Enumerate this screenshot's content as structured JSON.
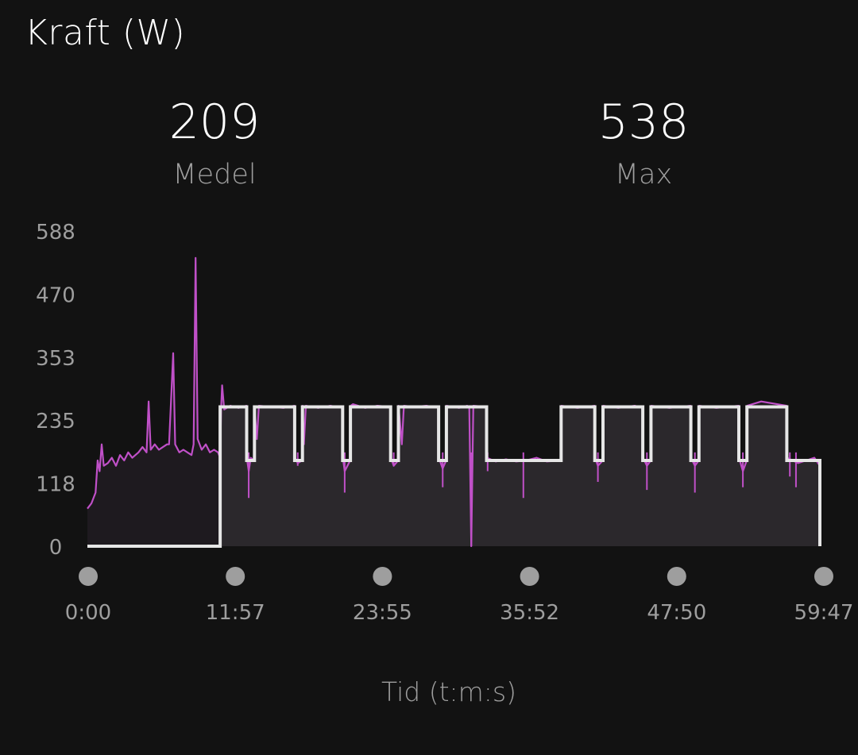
{
  "header": {
    "title": "Kraft (W)"
  },
  "stats": {
    "average": {
      "value": "209",
      "label": "Medel"
    },
    "max": {
      "value": "538",
      "label": "Max"
    }
  },
  "colors": {
    "background": "#121212",
    "power_line": "#c050c8",
    "target_line": "#e6e6e6",
    "area_fill": "#2b282c",
    "axis_label": "#9e9e9e",
    "time_marker": "#9e9e9e"
  },
  "chart_data": {
    "type": "line",
    "ylim": [
      0,
      588
    ],
    "y_ticks": [
      "588",
      "470",
      "353",
      "235",
      "118",
      "0"
    ],
    "x_ticks": [
      "0:00",
      "11:57",
      "23:55",
      "35:52",
      "47:50",
      "59:47"
    ],
    "x_duration_seconds": 3587,
    "xlabel": "Tid (t:m:s)",
    "series": [
      {
        "name": "",
        "role": "target",
        "points": [
          [
            0,
            0
          ],
          [
            650,
            0
          ],
          [
            650,
            260
          ],
          [
            780,
            260
          ],
          [
            780,
            160
          ],
          [
            818,
            160
          ],
          [
            818,
            260
          ],
          [
            1015,
            260
          ],
          [
            1015,
            160
          ],
          [
            1053,
            160
          ],
          [
            1053,
            260
          ],
          [
            1250,
            260
          ],
          [
            1250,
            160
          ],
          [
            1288,
            160
          ],
          [
            1288,
            260
          ],
          [
            1485,
            260
          ],
          [
            1485,
            160
          ],
          [
            1523,
            160
          ],
          [
            1523,
            260
          ],
          [
            1720,
            260
          ],
          [
            1720,
            160
          ],
          [
            1758,
            160
          ],
          [
            1758,
            260
          ],
          [
            1955,
            260
          ],
          [
            1955,
            160
          ],
          [
            2320,
            160
          ],
          [
            2320,
            260
          ],
          [
            2485,
            260
          ],
          [
            2485,
            160
          ],
          [
            2525,
            160
          ],
          [
            2525,
            260
          ],
          [
            2720,
            260
          ],
          [
            2720,
            160
          ],
          [
            2760,
            160
          ],
          [
            2760,
            260
          ],
          [
            2955,
            260
          ],
          [
            2955,
            160
          ],
          [
            2995,
            160
          ],
          [
            2995,
            260
          ],
          [
            3190,
            260
          ],
          [
            3190,
            160
          ],
          [
            3230,
            160
          ],
          [
            3230,
            260
          ],
          [
            3425,
            260
          ],
          [
            3425,
            160
          ],
          [
            3587,
            160
          ],
          [
            3587,
            0
          ]
        ]
      },
      {
        "name": "",
        "role": "power",
        "points": [
          [
            0,
            70
          ],
          [
            20,
            80
          ],
          [
            40,
            100
          ],
          [
            50,
            160
          ],
          [
            60,
            140
          ],
          [
            70,
            190
          ],
          [
            80,
            150
          ],
          [
            100,
            155
          ],
          [
            120,
            165
          ],
          [
            140,
            150
          ],
          [
            160,
            170
          ],
          [
            180,
            160
          ],
          [
            200,
            175
          ],
          [
            220,
            165
          ],
          [
            250,
            175
          ],
          [
            270,
            185
          ],
          [
            290,
            175
          ],
          [
            300,
            270
          ],
          [
            310,
            180
          ],
          [
            330,
            190
          ],
          [
            350,
            180
          ],
          [
            370,
            185
          ],
          [
            390,
            190
          ],
          [
            400,
            190
          ],
          [
            420,
            360
          ],
          [
            430,
            190
          ],
          [
            450,
            175
          ],
          [
            470,
            180
          ],
          [
            490,
            175
          ],
          [
            510,
            170
          ],
          [
            520,
            190
          ],
          [
            530,
            538
          ],
          [
            540,
            200
          ],
          [
            560,
            180
          ],
          [
            580,
            190
          ],
          [
            600,
            175
          ],
          [
            620,
            180
          ],
          [
            640,
            175
          ],
          [
            650,
            165
          ],
          [
            655,
            260
          ],
          [
            660,
            300
          ],
          [
            670,
            255
          ],
          [
            700,
            262
          ],
          [
            740,
            258
          ],
          [
            779,
            262
          ],
          [
            781,
            165
          ],
          [
            790,
            140
          ],
          [
            800,
            165
          ],
          [
            817,
            160
          ],
          [
            819,
            255
          ],
          [
            830,
            200
          ],
          [
            840,
            262
          ],
          [
            900,
            260
          ],
          [
            960,
            258
          ],
          [
            1014,
            262
          ],
          [
            1016,
            165
          ],
          [
            1030,
            155
          ],
          [
            1052,
            160
          ],
          [
            1054,
            262
          ],
          [
            1060,
            190
          ],
          [
            1070,
            262
          ],
          [
            1130,
            258
          ],
          [
            1190,
            262
          ],
          [
            1249,
            258
          ],
          [
            1251,
            165
          ],
          [
            1260,
            140
          ],
          [
            1287,
            160
          ],
          [
            1289,
            262
          ],
          [
            1300,
            265
          ],
          [
            1360,
            258
          ],
          [
            1420,
            262
          ],
          [
            1484,
            260
          ],
          [
            1486,
            165
          ],
          [
            1500,
            150
          ],
          [
            1522,
            160
          ],
          [
            1524,
            262
          ],
          [
            1540,
            190
          ],
          [
            1550,
            262
          ],
          [
            1600,
            260
          ],
          [
            1660,
            262
          ],
          [
            1719,
            258
          ],
          [
            1721,
            165
          ],
          [
            1740,
            145
          ],
          [
            1757,
            160
          ],
          [
            1759,
            262
          ],
          [
            1820,
            258
          ],
          [
            1860,
            262
          ],
          [
            1870,
            258
          ],
          [
            1880,
            0
          ],
          [
            1890,
            262
          ],
          [
            1954,
            260
          ],
          [
            1956,
            165
          ],
          [
            2000,
            158
          ],
          [
            2050,
            162
          ],
          [
            2100,
            158
          ],
          [
            2150,
            160
          ],
          [
            2200,
            165
          ],
          [
            2250,
            158
          ],
          [
            2319,
            160
          ],
          [
            2321,
            262
          ],
          [
            2400,
            258
          ],
          [
            2484,
            262
          ],
          [
            2486,
            165
          ],
          [
            2500,
            150
          ],
          [
            2524,
            160
          ],
          [
            2526,
            262
          ],
          [
            2600,
            258
          ],
          [
            2680,
            262
          ],
          [
            2719,
            258
          ],
          [
            2721,
            165
          ],
          [
            2740,
            150
          ],
          [
            2759,
            160
          ],
          [
            2761,
            262
          ],
          [
            2850,
            258
          ],
          [
            2954,
            262
          ],
          [
            2956,
            165
          ],
          [
            2975,
            150
          ],
          [
            2994,
            160
          ],
          [
            2996,
            262
          ],
          [
            3080,
            258
          ],
          [
            3189,
            262
          ],
          [
            3191,
            165
          ],
          [
            3210,
            140
          ],
          [
            3229,
            160
          ],
          [
            3231,
            262
          ],
          [
            3300,
            270
          ],
          [
            3424,
            262
          ],
          [
            3426,
            165
          ],
          [
            3480,
            155
          ],
          [
            3520,
            160
          ],
          [
            3560,
            165
          ],
          [
            3587,
            150
          ]
        ]
      }
    ],
    "spikes_down": [
      [
        790,
        90
      ],
      [
        1030,
        150
      ],
      [
        1260,
        100
      ],
      [
        1290,
        230
      ],
      [
        1500,
        150
      ],
      [
        1740,
        110
      ],
      [
        1880,
        0
      ],
      [
        1960,
        140
      ],
      [
        2135,
        90
      ],
      [
        2500,
        120
      ],
      [
        2740,
        105
      ],
      [
        2975,
        100
      ],
      [
        3210,
        110
      ],
      [
        3440,
        130
      ],
      [
        3470,
        110
      ]
    ]
  }
}
